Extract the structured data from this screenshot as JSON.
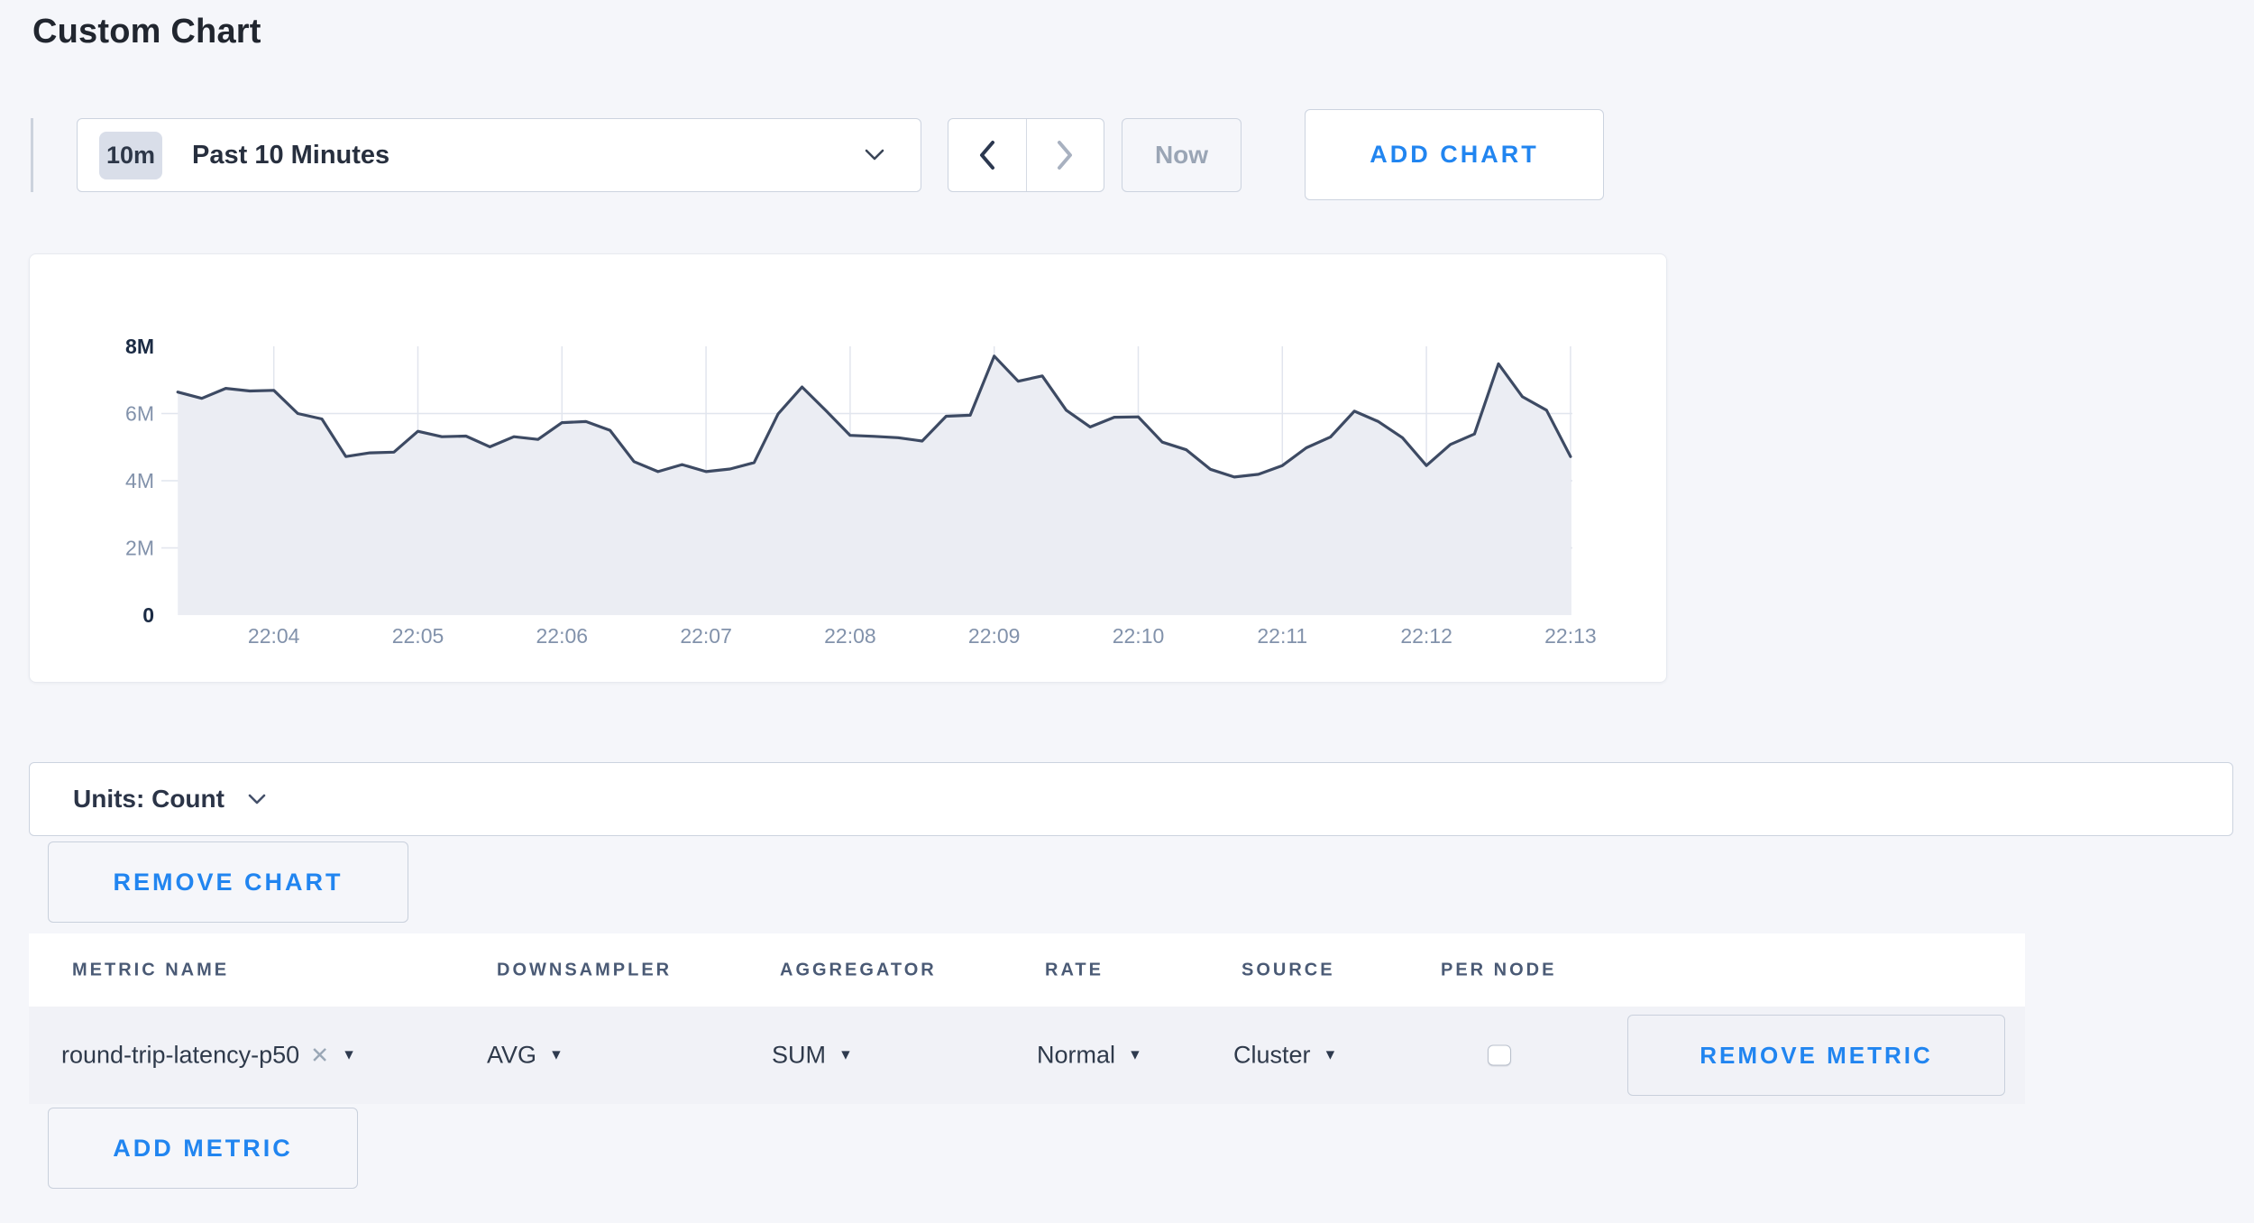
{
  "title": "Custom Chart",
  "controls": {
    "timeframe_badge": "10m",
    "timeframe_label": "Past 10 Minutes",
    "now_label": "Now",
    "add_chart_label": "ADD CHART"
  },
  "units_bar": {
    "label": "Units: Count"
  },
  "remove_chart_label": "REMOVE CHART",
  "add_metric_label": "ADD METRIC",
  "icons": {
    "close": "✕",
    "caret_down": "▼"
  },
  "metric_table": {
    "columns": [
      "METRIC NAME",
      "DOWNSAMPLER",
      "AGGREGATOR",
      "RATE",
      "SOURCE",
      "PER NODE"
    ],
    "rows": [
      {
        "metric_name": "round-trip-latency-p50",
        "downsampler": "AVG",
        "aggregator": "SUM",
        "rate": "Normal",
        "source": "Cluster",
        "per_node_checked": false,
        "remove_label": "REMOVE METRIC"
      }
    ]
  },
  "chart_data": {
    "type": "area",
    "title": "",
    "legend": "none",
    "grid": true,
    "ylabel": "",
    "xlabel": "",
    "ylim_millions": [
      0,
      8
    ],
    "x_tick_labels": [
      "22:04",
      "22:05",
      "22:06",
      "22:07",
      "22:08",
      "22:09",
      "22:10",
      "22:11",
      "22:12",
      "22:13"
    ],
    "y_ticks": [
      {
        "label": "0",
        "value_millions": 0,
        "bold": true
      },
      {
        "label": "2M",
        "value_millions": 2,
        "bold": false
      },
      {
        "label": "4M",
        "value_millions": 4,
        "bold": false
      },
      {
        "label": "6M",
        "value_millions": 6,
        "bold": false
      },
      {
        "label": "8M",
        "value_millions": 8,
        "bold": true
      }
    ],
    "sample_interval_seconds": 10,
    "x_start_seconds_before_first_tick": 40,
    "series_name": "round-trip-latency-p50",
    "values_millions": [
      6.64,
      6.45,
      6.75,
      6.67,
      6.69,
      6.0,
      5.84,
      4.72,
      4.83,
      4.85,
      5.47,
      5.31,
      5.33,
      5.01,
      5.31,
      5.23,
      5.73,
      5.76,
      5.5,
      4.57,
      4.27,
      4.48,
      4.27,
      4.35,
      4.54,
      5.99,
      6.79,
      6.08,
      5.35,
      5.32,
      5.28,
      5.18,
      5.92,
      5.95,
      7.71,
      6.96,
      7.12,
      6.1,
      5.6,
      5.89,
      5.9,
      5.15,
      4.92,
      4.34,
      4.11,
      4.19,
      4.45,
      4.98,
      5.3,
      6.07,
      5.76,
      5.28,
      4.45,
      5.08,
      5.39,
      7.48,
      6.5,
      6.1,
      4.72
    ],
    "line_color": "#3d4a63",
    "fill_color": "#ebedf3",
    "grid_color": "#e1e5ee",
    "axis_label_color": "#8292ab",
    "axis_label_bold_color": "#1b2b44"
  }
}
